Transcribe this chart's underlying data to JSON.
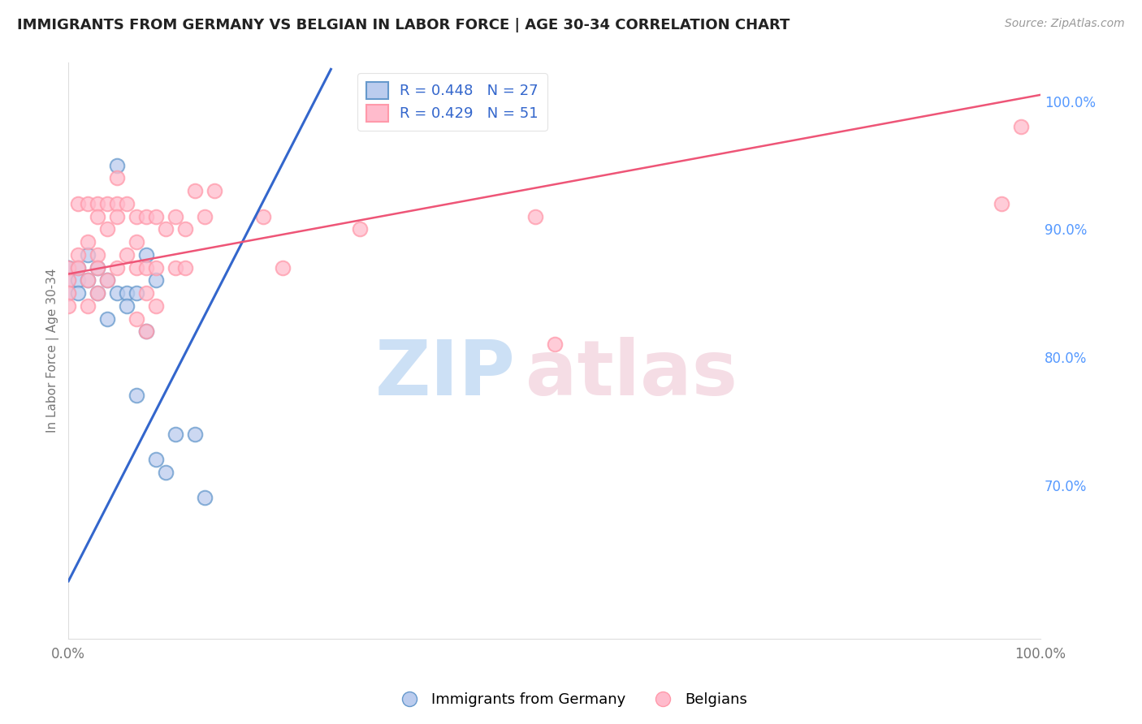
{
  "title": "IMMIGRANTS FROM GERMANY VS BELGIAN IN LABOR FORCE | AGE 30-34 CORRELATION CHART",
  "source": "Source: ZipAtlas.com",
  "ylabel": "In Labor Force | Age 30-34",
  "xlim": [
    0.0,
    1.0
  ],
  "ylim": [
    0.58,
    1.03
  ],
  "x_ticks": [
    0.0,
    0.2,
    0.4,
    0.6,
    0.8,
    1.0
  ],
  "x_tick_labels": [
    "0.0%",
    "",
    "",
    "",
    "",
    "100.0%"
  ],
  "y_tick_labels_right": [
    "100.0%",
    "90.0%",
    "80.0%",
    "70.0%"
  ],
  "y_ticks_right": [
    1.0,
    0.9,
    0.8,
    0.7
  ],
  "legend_blue_label": "R = 0.448   N = 27",
  "legend_pink_label": "R = 0.429   N = 51",
  "blue_edge_color": "#6699cc",
  "pink_edge_color": "#ff99aa",
  "blue_line_color": "#3366cc",
  "pink_line_color": "#ee5577",
  "blue_face_color": "#bbccee",
  "pink_face_color": "#ffbbcc",
  "background_color": "#ffffff",
  "grid_color": "#cccccc",
  "blue_x": [
    0.0,
    0.0,
    0.0,
    0.0,
    0.01,
    0.01,
    0.01,
    0.02,
    0.02,
    0.03,
    0.03,
    0.04,
    0.04,
    0.05,
    0.05,
    0.06,
    0.06,
    0.07,
    0.07,
    0.08,
    0.08,
    0.09,
    0.09,
    0.1,
    0.11,
    0.13,
    0.14
  ],
  "blue_y": [
    0.87,
    0.87,
    0.86,
    0.85,
    0.87,
    0.86,
    0.85,
    0.88,
    0.86,
    0.87,
    0.85,
    0.86,
    0.83,
    0.85,
    0.95,
    0.85,
    0.84,
    0.85,
    0.77,
    0.82,
    0.88,
    0.86,
    0.72,
    0.71,
    0.74,
    0.74,
    0.69
  ],
  "pink_x": [
    0.0,
    0.0,
    0.0,
    0.0,
    0.01,
    0.01,
    0.01,
    0.02,
    0.02,
    0.02,
    0.02,
    0.03,
    0.03,
    0.03,
    0.03,
    0.03,
    0.04,
    0.04,
    0.04,
    0.05,
    0.05,
    0.05,
    0.05,
    0.06,
    0.06,
    0.07,
    0.07,
    0.07,
    0.07,
    0.08,
    0.08,
    0.08,
    0.08,
    0.09,
    0.09,
    0.09,
    0.1,
    0.11,
    0.11,
    0.12,
    0.12,
    0.13,
    0.14,
    0.15,
    0.2,
    0.22,
    0.3,
    0.48,
    0.5,
    0.96,
    0.98
  ],
  "pink_y": [
    0.87,
    0.86,
    0.85,
    0.84,
    0.92,
    0.88,
    0.87,
    0.92,
    0.89,
    0.86,
    0.84,
    0.92,
    0.91,
    0.88,
    0.87,
    0.85,
    0.92,
    0.9,
    0.86,
    0.94,
    0.92,
    0.91,
    0.87,
    0.92,
    0.88,
    0.91,
    0.89,
    0.87,
    0.83,
    0.91,
    0.87,
    0.85,
    0.82,
    0.91,
    0.87,
    0.84,
    0.9,
    0.91,
    0.87,
    0.9,
    0.87,
    0.93,
    0.91,
    0.93,
    0.91,
    0.87,
    0.9,
    0.91,
    0.81,
    0.92,
    0.98
  ],
  "blue_trendline_x": [
    0.0,
    0.27
  ],
  "blue_trendline_y": [
    0.625,
    1.025
  ],
  "pink_trendline_x": [
    0.0,
    1.0
  ],
  "pink_trendline_y": [
    0.865,
    1.005
  ],
  "watermark_zip_color": "#cce0f5",
  "watermark_atlas_color": "#f5dde5",
  "legend_text_color": "#3366cc",
  "right_axis_color": "#5599ff",
  "title_fontsize": 13,
  "scatter_size": 160,
  "scatter_linewidth": 1.5
}
